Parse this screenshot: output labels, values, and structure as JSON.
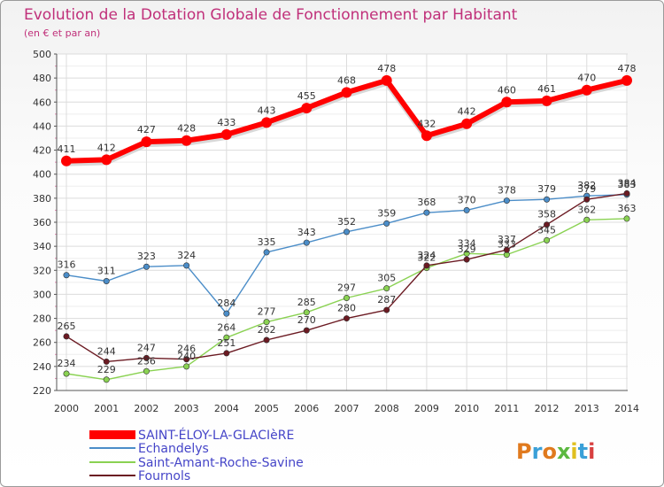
{
  "chart_data": {
    "type": "line",
    "title": "Evolution de la Dotation Globale de Fonctionnement par Habitant",
    "subtitle": "(en € et par an)",
    "x": [
      2000,
      2001,
      2002,
      2003,
      2004,
      2005,
      2006,
      2007,
      2008,
      2009,
      2010,
      2011,
      2012,
      2013,
      2014
    ],
    "ylim": [
      220,
      500
    ],
    "ytick_step": 20,
    "grid": true,
    "legend_position": "bottom-left",
    "series": [
      {
        "name": "SAINT-ÉLOY-LA-GLACIèRE",
        "color": "#ff0000",
        "values": [
          411,
          412,
          427,
          428,
          433,
          443,
          455,
          468,
          478,
          432,
          442,
          460,
          461,
          470,
          478
        ]
      },
      {
        "name": "Echandelys",
        "color": "#4b8dc8",
        "values": [
          316,
          311,
          323,
          324,
          284,
          335,
          343,
          352,
          359,
          368,
          370,
          378,
          379,
          382,
          383
        ]
      },
      {
        "name": "Saint-Amant-Roche-Savine",
        "color": "#8ad252",
        "values": [
          234,
          229,
          236,
          240,
          264,
          277,
          285,
          297,
          305,
          322,
          334,
          333,
          345,
          362,
          363
        ]
      },
      {
        "name": "Fournols",
        "color": "#6b1a22",
        "values": [
          265,
          244,
          247,
          246,
          251,
          262,
          270,
          280,
          287,
          324,
          329,
          337,
          358,
          379,
          384
        ]
      }
    ]
  },
  "watermark": {
    "text": "Proxiti"
  }
}
